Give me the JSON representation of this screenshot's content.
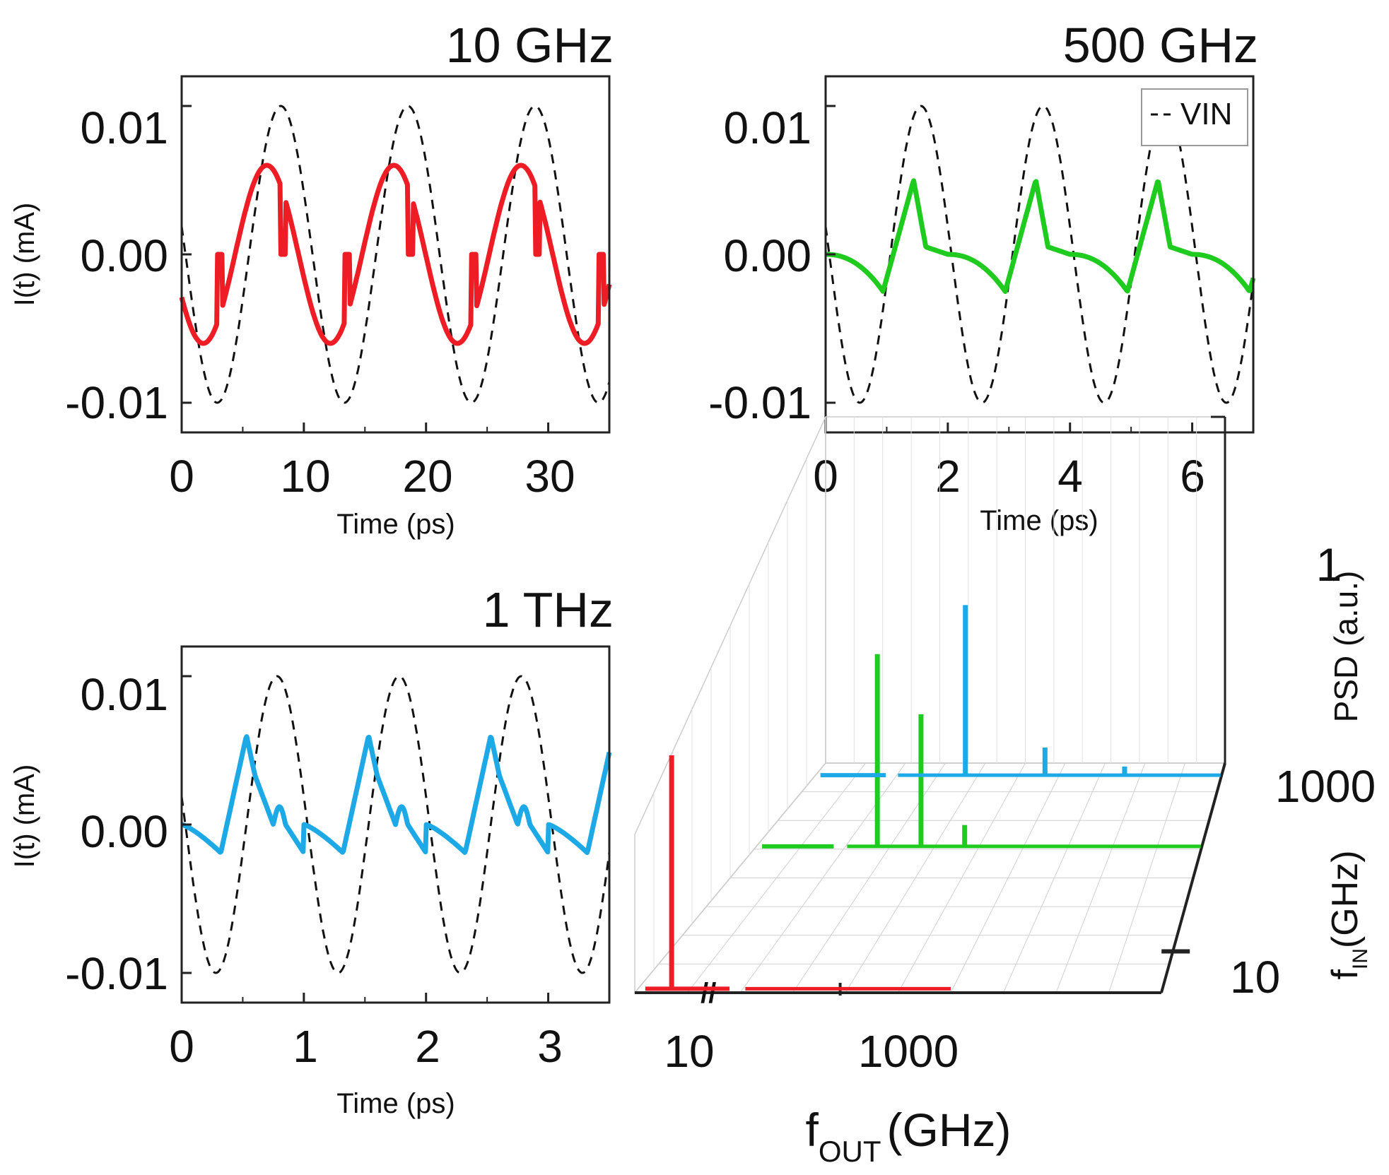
{
  "colors": {
    "p10g": "#ee1c24",
    "p500g": "#1ecb1e",
    "p1t": "#1ca9e6",
    "vin": "#111111",
    "frame": "#222222",
    "grid": "#d0d0d0"
  },
  "chart_data": [
    {
      "type": "line",
      "title": "10 GHz",
      "xlabel": "Time (ps)",
      "ylabel": "I(t) (mA)",
      "xlim": [
        0,
        35
      ],
      "ylim": [
        -0.012,
        0.012
      ],
      "xticks": [
        "0",
        "10",
        "20",
        "30"
      ],
      "yticks": [
        "0.01",
        "0.00",
        "-0.01"
      ],
      "series": [
        {
          "name": "",
          "style": "solid",
          "color": "#ee1c24",
          "amplitude": 0.006,
          "period_ps": 10.4,
          "shape": "sine-stepped"
        },
        {
          "name": "VIN",
          "style": "dashed",
          "color": "#111111",
          "amplitude": 0.01,
          "period_ps": 10.4
        }
      ]
    },
    {
      "type": "line",
      "title": "500 GHz",
      "xlabel": "Time (ps)",
      "ylabel": "",
      "xlim": [
        0,
        7
      ],
      "ylim": [
        -0.012,
        0.012
      ],
      "xticks": [
        "0",
        "2",
        "4",
        "6"
      ],
      "yticks": [
        "0.01",
        "0.00",
        "-0.01"
      ],
      "legend": {
        "entries": [
          "VIN"
        ],
        "placement": "top-right"
      },
      "series": [
        {
          "name": "",
          "style": "solid",
          "color": "#1ecb1e",
          "peak": 0.005,
          "trough": -0.0025,
          "period_ps": 2.0,
          "shape": "spike"
        },
        {
          "name": "VIN",
          "style": "dashed",
          "color": "#111111",
          "amplitude": 0.01,
          "period_ps": 2.0
        }
      ]
    },
    {
      "type": "line",
      "title": "1 THz",
      "xlabel": "Time (ps)",
      "ylabel": "I(t)   (mA)",
      "xlim": [
        0,
        3.5
      ],
      "ylim": [
        -0.012,
        0.012
      ],
      "xticks": [
        "0",
        "1",
        "2",
        "3"
      ],
      "yticks": [
        "0.01",
        "0.00",
        "-0.01"
      ],
      "series": [
        {
          "name": "",
          "style": "solid",
          "color": "#1ca9e6",
          "peak": 0.006,
          "trough": -0.002,
          "period_ps": 1.0,
          "shape": "spike-ripple"
        },
        {
          "name": "VIN",
          "style": "dashed",
          "color": "#111111",
          "amplitude": 0.01,
          "period_ps": 1.0
        }
      ]
    },
    {
      "type": "line",
      "subtype": "3d-waterfall",
      "xlabel_main": "f",
      "xlabel_sub": "OUT",
      "xlabel_unit": "(GHz)",
      "ylabel": "PSD (a.u.)",
      "zlabel_main": "f",
      "zlabel_sub": "IN",
      "zlabel_unit": "(GHz)",
      "xticks": [
        "10",
        "1000"
      ],
      "zticks": [
        "10",
        "1000"
      ],
      "psd_tick": "1",
      "series": [
        {
          "f_in_ghz": 10,
          "color": "#ee1c24",
          "peaks": [
            {
              "f_out_ghz": 10,
              "psd": 0.75
            }
          ]
        },
        {
          "f_in_ghz": 500,
          "color": "#1ecb1e",
          "peaks": [
            {
              "f_out_ghz": 500,
              "psd": 0.62
            },
            {
              "f_out_ghz": 1000,
              "psd": 0.43
            },
            {
              "f_out_ghz": 1500,
              "psd": 0.08
            }
          ]
        },
        {
          "f_in_ghz": 1000,
          "color": "#1ca9e6",
          "peaks": [
            {
              "f_out_ghz": 1000,
              "psd": 0.55
            },
            {
              "f_out_ghz": 2000,
              "psd": 0.1
            },
            {
              "f_out_ghz": 3000,
              "psd": 0.04
            }
          ]
        }
      ]
    }
  ]
}
